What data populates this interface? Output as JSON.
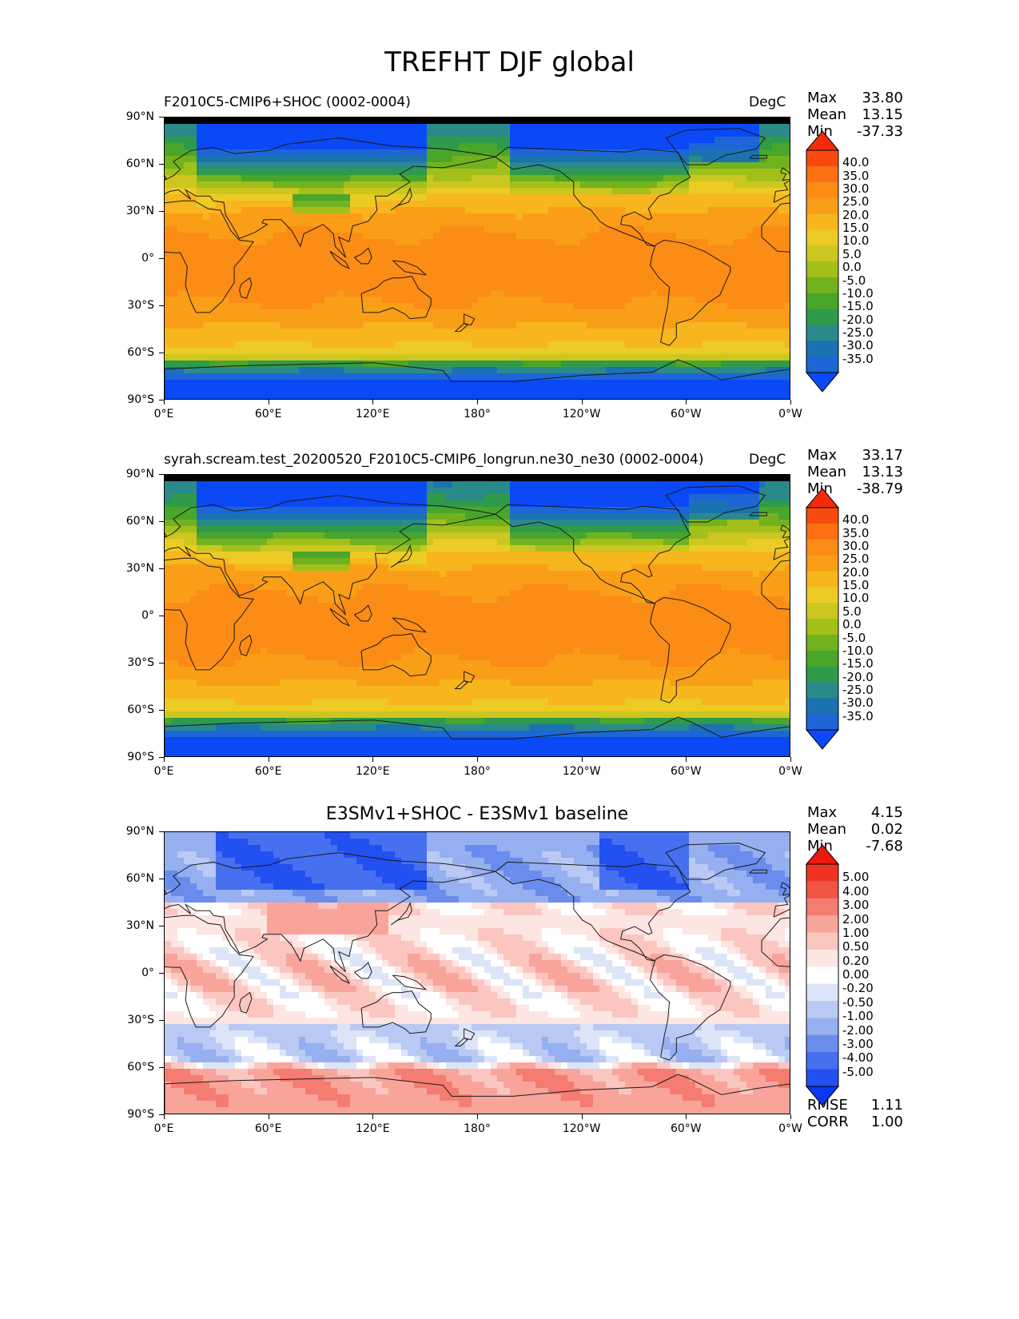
{
  "figure_title": "TREFHT DJF global",
  "y_ticks": [
    "90°N",
    "60°N",
    "30°N",
    "0°",
    "30°S",
    "60°S",
    "90°S"
  ],
  "x_ticks": [
    "0°E",
    "60°E",
    "120°E",
    "180°",
    "120°W",
    "60°W",
    "0°W"
  ],
  "stat_labels": {
    "max": "Max",
    "mean": "Mean",
    "min": "Min",
    "rmse": "RMSE",
    "corr": "CORR"
  },
  "panels": [
    {
      "title": "F2010C5-CMIP6+SHOC (0002-0004)",
      "units": "DegC",
      "stats": {
        "max": "33.80",
        "mean": "13.15",
        "min": "-37.33"
      },
      "colorbar_labels": [
        "40.0",
        "35.0",
        "30.0",
        "25.0",
        "20.0",
        "15.0",
        "10.0",
        "5.0",
        "0.0",
        "-5.0",
        "-10.0",
        "-15.0",
        "-20.0",
        "-25.0",
        "-30.0",
        "-35.0"
      ]
    },
    {
      "title": "syrah.scream.test_20200520_F2010C5-CMIP6_longrun.ne30_ne30 (0002-0004)",
      "units": "DegC",
      "stats": {
        "max": "33.17",
        "mean": "13.13",
        "min": "-38.79"
      },
      "colorbar_labels": [
        "40.0",
        "35.0",
        "30.0",
        "25.0",
        "20.0",
        "15.0",
        "10.0",
        "5.0",
        "0.0",
        "-5.0",
        "-10.0",
        "-15.0",
        "-20.0",
        "-25.0",
        "-30.0",
        "-35.0"
      ]
    },
    {
      "title": "E3SMv1+SHOC - E3SMv1 baseline",
      "units": "",
      "stats": {
        "max": "4.15",
        "mean": "0.02",
        "min": "-7.68",
        "rmse": "1.11",
        "corr": "1.00"
      },
      "colorbar_labels": [
        "5.00",
        "4.00",
        "3.00",
        "2.00",
        "1.00",
        "0.50",
        "0.20",
        "0.00",
        "-0.20",
        "-0.50",
        "-1.00",
        "-2.00",
        "-3.00",
        "-4.00",
        "-5.00"
      ]
    }
  ],
  "colors": {
    "temp_scale": [
      "#0a49f5",
      "#1e66d6",
      "#1a73b0",
      "#2a8a8a",
      "#2f9a4a",
      "#4aa62a",
      "#72b21e",
      "#a3bf1a",
      "#ccc620",
      "#eccb24",
      "#f7b51e",
      "#fa9e18",
      "#fb8c16",
      "#fa7012",
      "#f84a0e",
      "#f32b0a"
    ],
    "diff_scale": [
      "#0a37f0",
      "#2350f0",
      "#4670ef",
      "#6a8ded",
      "#95aff0",
      "#b9c9f4",
      "#dce4f8",
      "#ffffff",
      "#fde5e2",
      "#fbc6c0",
      "#f8a49b",
      "#f57c70",
      "#f15445",
      "#ee3322",
      "#eb1a0a"
    ],
    "coastline": "#1a1a1a"
  }
}
